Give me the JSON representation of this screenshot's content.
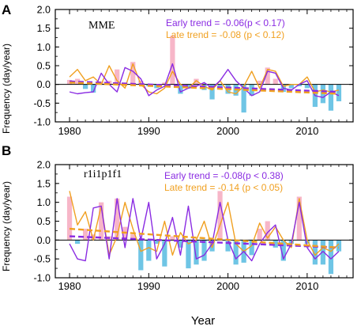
{
  "colors": {
    "pos_bar": "#F7B6C8",
    "neg_bar": "#6FC5E5",
    "early": "#8A2BE2",
    "late": "#F0A020",
    "zero_line": "#000000"
  },
  "chart_data": [
    {
      "type": "bar+line",
      "panel_label": "A",
      "model_label": "MME",
      "ylabel": "Frequency (day/year)",
      "xlabel": "",
      "xlim": [
        1978.2,
        2015.8
      ],
      "ylim": [
        -1.0,
        2.0
      ],
      "x_ticks": [
        1980,
        1990,
        2000,
        2010
      ],
      "y_ticks": [
        -1.0,
        -0.5,
        0.0,
        0.5,
        1.0,
        1.5,
        2.0
      ],
      "y_tick_labels": [
        "-1.0",
        "-0.5",
        "0.0",
        "0.5",
        "1.0",
        "1.5",
        "2.0"
      ],
      "x": [
        1980,
        1981,
        1982,
        1983,
        1984,
        1985,
        1986,
        1987,
        1988,
        1989,
        1990,
        1991,
        1992,
        1993,
        1994,
        1995,
        1996,
        1997,
        1998,
        1999,
        2000,
        2001,
        2002,
        2003,
        2004,
        2005,
        2006,
        2007,
        2008,
        2009,
        2010,
        2011,
        2012,
        2013,
        2014
      ],
      "bars": [
        0.12,
        0.15,
        -0.12,
        -0.22,
        0.08,
        0.1,
        0.4,
        0.05,
        0.6,
        0.1,
        -0.05,
        -0.1,
        0.05,
        1.3,
        -0.25,
        -0.1,
        0.15,
        -0.15,
        -0.4,
        -0.05,
        -0.25,
        -0.3,
        -0.75,
        -0.3,
        0.1,
        0.45,
        0.15,
        -0.2,
        -0.1,
        -0.05,
        -0.1,
        -0.6,
        -0.5,
        -0.7,
        -0.45
      ],
      "series": [
        {
          "name": "Early trend",
          "values": [
            -0.2,
            -0.25,
            -0.22,
            -0.2,
            0.3,
            0.0,
            -0.2,
            0.45,
            0.35,
            0.15,
            -0.3,
            -0.15,
            -0.05,
            0.55,
            -0.2,
            -0.1,
            -0.05,
            0.05,
            -0.1,
            0.1,
            0.4,
            0.1,
            -0.1,
            -0.3,
            -0.2,
            0.35,
            0.3,
            -0.1,
            -0.15,
            0.0,
            0.1,
            -0.3,
            -0.35,
            -0.2,
            -0.3
          ]
        },
        {
          "name": "Late trend",
          "values": [
            0.2,
            0.4,
            0.1,
            0.2,
            0.0,
            0.5,
            0.1,
            -0.1,
            0.55,
            0.0,
            -0.2,
            -0.25,
            -0.1,
            0.35,
            0.0,
            -0.1,
            0.1,
            -0.05,
            -0.15,
            0.1,
            -0.2,
            -0.25,
            -0.05,
            0.35,
            -0.1,
            0.4,
            0.35,
            -0.05,
            0.0,
            0.0,
            0.2,
            -0.2,
            -0.15,
            -0.2,
            -0.15
          ]
        }
      ],
      "trend_lines": [
        {
          "name": "Early",
          "start": [
            1980,
            0.08
          ],
          "end": [
            2014,
            -0.2
          ]
        },
        {
          "name": "Late",
          "start": [
            1980,
            0.05
          ],
          "end": [
            2014,
            -0.25
          ]
        }
      ],
      "annotations": [
        {
          "text": "Early trend = -0.06(p < 0.17)",
          "color_key": "early"
        },
        {
          "text": "Late trend = -0.08 (p < 0.12)",
          "color_key": "late"
        }
      ]
    },
    {
      "type": "bar+line",
      "panel_label": "B",
      "model_label": "r1i1p1f1",
      "ylabel": "Frequency (day/year)",
      "xlabel": "Year",
      "xlim": [
        1978.2,
        2015.8
      ],
      "ylim": [
        -1.0,
        2.0
      ],
      "x_ticks": [
        1980,
        1990,
        2000,
        2010
      ],
      "y_ticks": [
        -1.0,
        -0.5,
        0.0,
        0.5,
        1.0,
        1.5,
        2.0
      ],
      "y_tick_labels": [
        "-1.0",
        "-0.5",
        "0.0",
        "0.5",
        "1.0",
        "1.5",
        "2.0"
      ],
      "x": [
        1980,
        1981,
        1982,
        1983,
        1984,
        1985,
        1986,
        1987,
        1988,
        1989,
        1990,
        1991,
        1992,
        1993,
        1994,
        1995,
        1996,
        1997,
        1998,
        1999,
        2000,
        2001,
        2002,
        2003,
        2004,
        2005,
        2006,
        2007,
        2008,
        2009,
        2010,
        2011,
        2012,
        2013,
        2014
      ],
      "bars": [
        1.15,
        -0.1,
        0.3,
        0.15,
        1.0,
        0.1,
        1.1,
        0.35,
        0.15,
        -0.8,
        -0.55,
        -0.1,
        -0.7,
        0.1,
        -0.2,
        -0.75,
        -0.65,
        -0.55,
        -0.3,
        1.3,
        -0.3,
        -0.65,
        -0.6,
        -0.4,
        0.3,
        0.5,
        -0.2,
        -0.55,
        -0.1,
        1.15,
        -0.1,
        -0.65,
        -0.65,
        -0.9,
        -0.3
      ],
      "series": [
        {
          "name": "Early trend",
          "values": [
            -0.1,
            -0.5,
            -0.55,
            0.85,
            0.9,
            -0.5,
            1.1,
            -0.2,
            1.1,
            0.0,
            1.0,
            -0.5,
            -0.1,
            0.6,
            -0.4,
            0.9,
            -0.5,
            -0.4,
            -0.1,
            1.0,
            0.0,
            -0.5,
            -0.3,
            -0.55,
            -0.1,
            0.2,
            0.4,
            -0.5,
            -0.1,
            1.0,
            -0.2,
            -0.5,
            -0.3,
            -0.5,
            -0.3
          ]
        },
        {
          "name": "Late trend",
          "values": [
            1.3,
            0.4,
            0.75,
            0.0,
            0.9,
            -0.4,
            0.1,
            1.0,
            0.3,
            -0.3,
            -0.2,
            -0.3,
            0.5,
            -0.4,
            0.2,
            -0.1,
            0.0,
            0.5,
            -0.2,
            0.4,
            1.0,
            -0.1,
            -0.3,
            -0.15,
            0.45,
            0.05,
            0.35,
            0.0,
            -0.2,
            1.1,
            0.0,
            -0.4,
            -0.2,
            -0.3,
            -0.1
          ]
        }
      ],
      "trend_lines": [
        {
          "name": "Early",
          "start": [
            1980,
            0.1
          ],
          "end": [
            2014,
            -0.2
          ]
        },
        {
          "name": "Late",
          "start": [
            1980,
            0.3
          ],
          "end": [
            2014,
            -0.2
          ]
        }
      ],
      "annotations": [
        {
          "text": "Early trend = -0.08(p < 0.38)",
          "color_key": "early"
        },
        {
          "text": "Late trend = -0.14 (p < 0.05)",
          "color_key": "late"
        }
      ]
    }
  ]
}
